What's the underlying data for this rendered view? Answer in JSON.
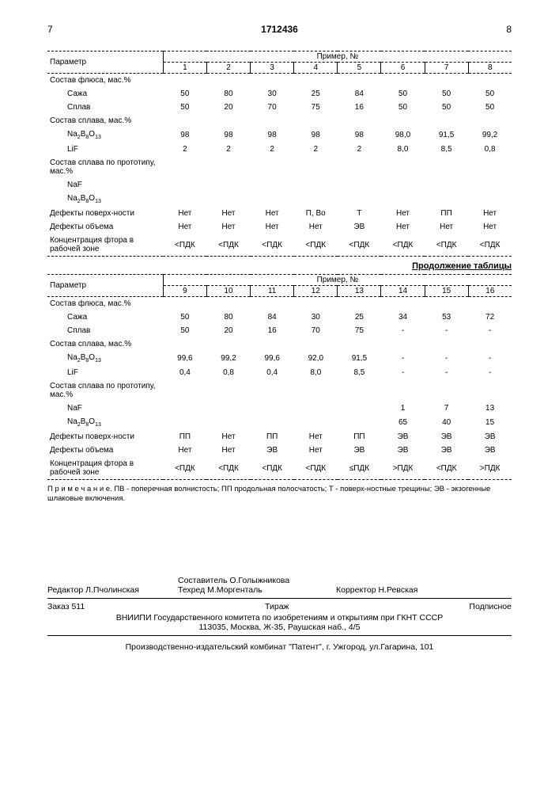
{
  "pageLeft": "7",
  "patentNum": "1712436",
  "pageRight": "8",
  "table1": {
    "paramHeader": "Параметр",
    "exampleHeader": "Пример, №",
    "cols": [
      "1",
      "2",
      "3",
      "4",
      "5",
      "6",
      "7",
      "8"
    ],
    "rows": [
      {
        "label": "Состав флюса, мас.%",
        "vals": [
          "",
          "",
          "",
          "",
          "",
          "",
          "",
          ""
        ]
      },
      {
        "label": "Сажа",
        "indent": true,
        "vals": [
          "50",
          "80",
          "30",
          "25",
          "84",
          "50",
          "50",
          "50"
        ]
      },
      {
        "label": "Сплав",
        "indent": true,
        "vals": [
          "50",
          "20",
          "70",
          "75",
          "16",
          "50",
          "50",
          "50"
        ]
      },
      {
        "label": "Состав сплава, мас.%",
        "vals": [
          "",
          "",
          "",
          "",
          "",
          "",
          "",
          ""
        ]
      },
      {
        "label": "Na₂B₈O₁₃",
        "indent": true,
        "vals": [
          "98",
          "98",
          "98",
          "98",
          "98",
          "98,0",
          "91,5",
          "99,2"
        ]
      },
      {
        "label": "LiF",
        "indent": true,
        "vals": [
          "2",
          "2",
          "2",
          "2",
          "2",
          "8,0",
          "8,5",
          "0,8"
        ]
      },
      {
        "label": "Состав сплава по прототипу, мас.%",
        "vals": [
          "",
          "",
          "",
          "",
          "",
          "",
          "",
          ""
        ]
      },
      {
        "label": "NaF",
        "indent": true,
        "vals": [
          "",
          "",
          "",
          "",
          "",
          "",
          "",
          ""
        ]
      },
      {
        "label": "Na₂B₈O₁₃",
        "indent": true,
        "vals": [
          "",
          "",
          "",
          "",
          "",
          "",
          "",
          ""
        ]
      },
      {
        "label": "Дефекты поверх-ности",
        "vals": [
          "Нет",
          "Нет",
          "Нет",
          "П, Во",
          "Т",
          "Нет",
          "ПП",
          "Нет"
        ]
      },
      {
        "label": "Дефекты объема",
        "vals": [
          "Нет",
          "Нет",
          "Нет",
          "Нет",
          "ЭВ",
          "Нет",
          "Нет",
          "Нет"
        ]
      },
      {
        "label": "Концентрация фтора в рабочей зоне",
        "vals": [
          "<ПДК",
          "<ПДК",
          "<ПДК",
          "<ПДК",
          "<ПДК",
          "<ПДК",
          "<ПДК",
          "<ПДК"
        ]
      }
    ]
  },
  "continuation": "Продолжение таблицы",
  "table2": {
    "paramHeader": "Параметр",
    "exampleHeader": "Пример, №",
    "cols": [
      "9",
      "10",
      "11",
      "12",
      "13",
      "14",
      "15",
      "16"
    ],
    "rows": [
      {
        "label": "Состав флюса, мас.%",
        "vals": [
          "",
          "",
          "",
          "",
          "",
          "",
          "",
          ""
        ]
      },
      {
        "label": "Сажа",
        "indent": true,
        "vals": [
          "50",
          "80",
          "84",
          "30",
          "25",
          "34",
          "53",
          "72"
        ]
      },
      {
        "label": "Сплав",
        "indent": true,
        "vals": [
          "50",
          "20",
          "16",
          "70",
          "75",
          "-",
          "-",
          "-"
        ]
      },
      {
        "label": "Состав сплава, мас.%",
        "vals": [
          "",
          "",
          "",
          "",
          "",
          "",
          "",
          ""
        ]
      },
      {
        "label": "Na₂B₈O₁₃",
        "indent": true,
        "vals": [
          "99,6",
          "99,2",
          "99,6",
          "92,0",
          "91,5",
          "-",
          "-",
          "-"
        ]
      },
      {
        "label": "LiF",
        "indent": true,
        "vals": [
          "0,4",
          "0,8",
          "0,4",
          "8,0",
          "8,5",
          "-",
          "-",
          "-"
        ]
      },
      {
        "label": "Состав сплава по прототипу, мас.%",
        "vals": [
          "",
          "",
          "",
          "",
          "",
          "",
          "",
          ""
        ]
      },
      {
        "label": "NaF",
        "indent": true,
        "vals": [
          "",
          "",
          "",
          "",
          "",
          "1",
          "7",
          "13"
        ]
      },
      {
        "label": "Na₂B₈O₁₃",
        "indent": true,
        "vals": [
          "",
          "",
          "",
          "",
          "",
          "65",
          "40",
          "15"
        ]
      },
      {
        "label": "Дефекты поверх-ности",
        "vals": [
          "ПП",
          "Нет",
          "ПП",
          "Нет",
          "ПП",
          "ЭВ",
          "ЭВ",
          "ЭВ"
        ]
      },
      {
        "label": "Дефекты объема",
        "vals": [
          "Нет",
          "Нет",
          "ЭВ",
          "Нет",
          "ЭВ",
          "ЭВ",
          "ЭВ",
          "ЭВ"
        ]
      },
      {
        "label": "Концентрация фтора в рабочей зоне",
        "vals": [
          "<ПДК",
          "<ПДК",
          "<ПДК",
          "<ПДК",
          "≤ПДК",
          ">ПДК",
          "<ПДК",
          ">ПДК"
        ]
      }
    ]
  },
  "note": "П р и м е ч а н и е. ПВ - поперечная волнистость; ПП продольная полосчатость; Т - поверх-ностные трещины; ЭВ - экзогенные шлаковые включения.",
  "credits": {
    "editor": "Редактор Л.Пчолинская",
    "compiler": "Составитель О.Голыжникова",
    "techred": "Техред М.Моргенталь",
    "corrector": "Корректор Н.Ревская"
  },
  "footer": {
    "order": "Заказ 511",
    "tirage": "Тираж",
    "sub": "Подписное",
    "org": "ВНИИПИ Государственного комитета по изобретениям и открытиям при ГКНТ СССР",
    "addr": "113035, Москва, Ж-35, Раушская наб., 4/5",
    "prod": "Производственно-издательский комбинат \"Патент\", г. Ужгород, ул.Гагарина, 101"
  }
}
